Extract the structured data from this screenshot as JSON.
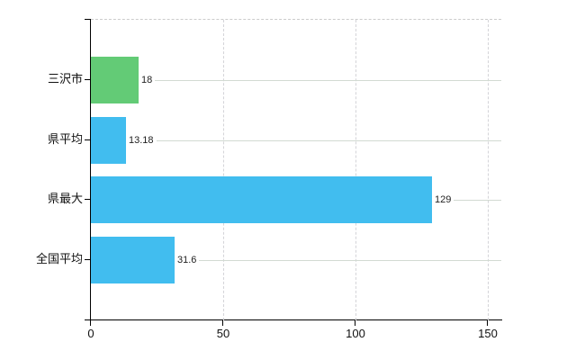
{
  "chart_data": {
    "type": "bar",
    "orientation": "horizontal",
    "title": "",
    "categories": [
      "三沢市",
      "県平均",
      "県最大",
      "全国平均"
    ],
    "values": [
      18,
      13.18,
      129,
      31.6
    ],
    "value_labels": [
      "18",
      "13.18",
      "129",
      "31.6"
    ],
    "series": [
      {
        "name": "",
        "values": [
          18,
          13.18,
          129,
          31.6
        ]
      }
    ],
    "bar_colors": [
      "#63cb76",
      "#41bdef",
      "#41bdef",
      "#41bdef"
    ],
    "x_axis": {
      "min": 0,
      "max": 155,
      "ticks": [
        0,
        50,
        100,
        150
      ],
      "tick_labels": [
        "0",
        "50",
        "100",
        "150"
      ]
    },
    "legend": "none",
    "grid": {
      "vertical_style": "dashed",
      "horizontal_style": "solid",
      "top_border_style": "dashed"
    }
  },
  "style": {
    "background": "#ffffff",
    "axis_color": "#000000",
    "grid_vertical_color": "#d4d4d8",
    "grid_horizontal_color": "#d2dad2",
    "top_border_color": "#cccccc",
    "category_label_color": "#111111",
    "value_label_color": "#222222",
    "tick_label_color": "#111111"
  }
}
